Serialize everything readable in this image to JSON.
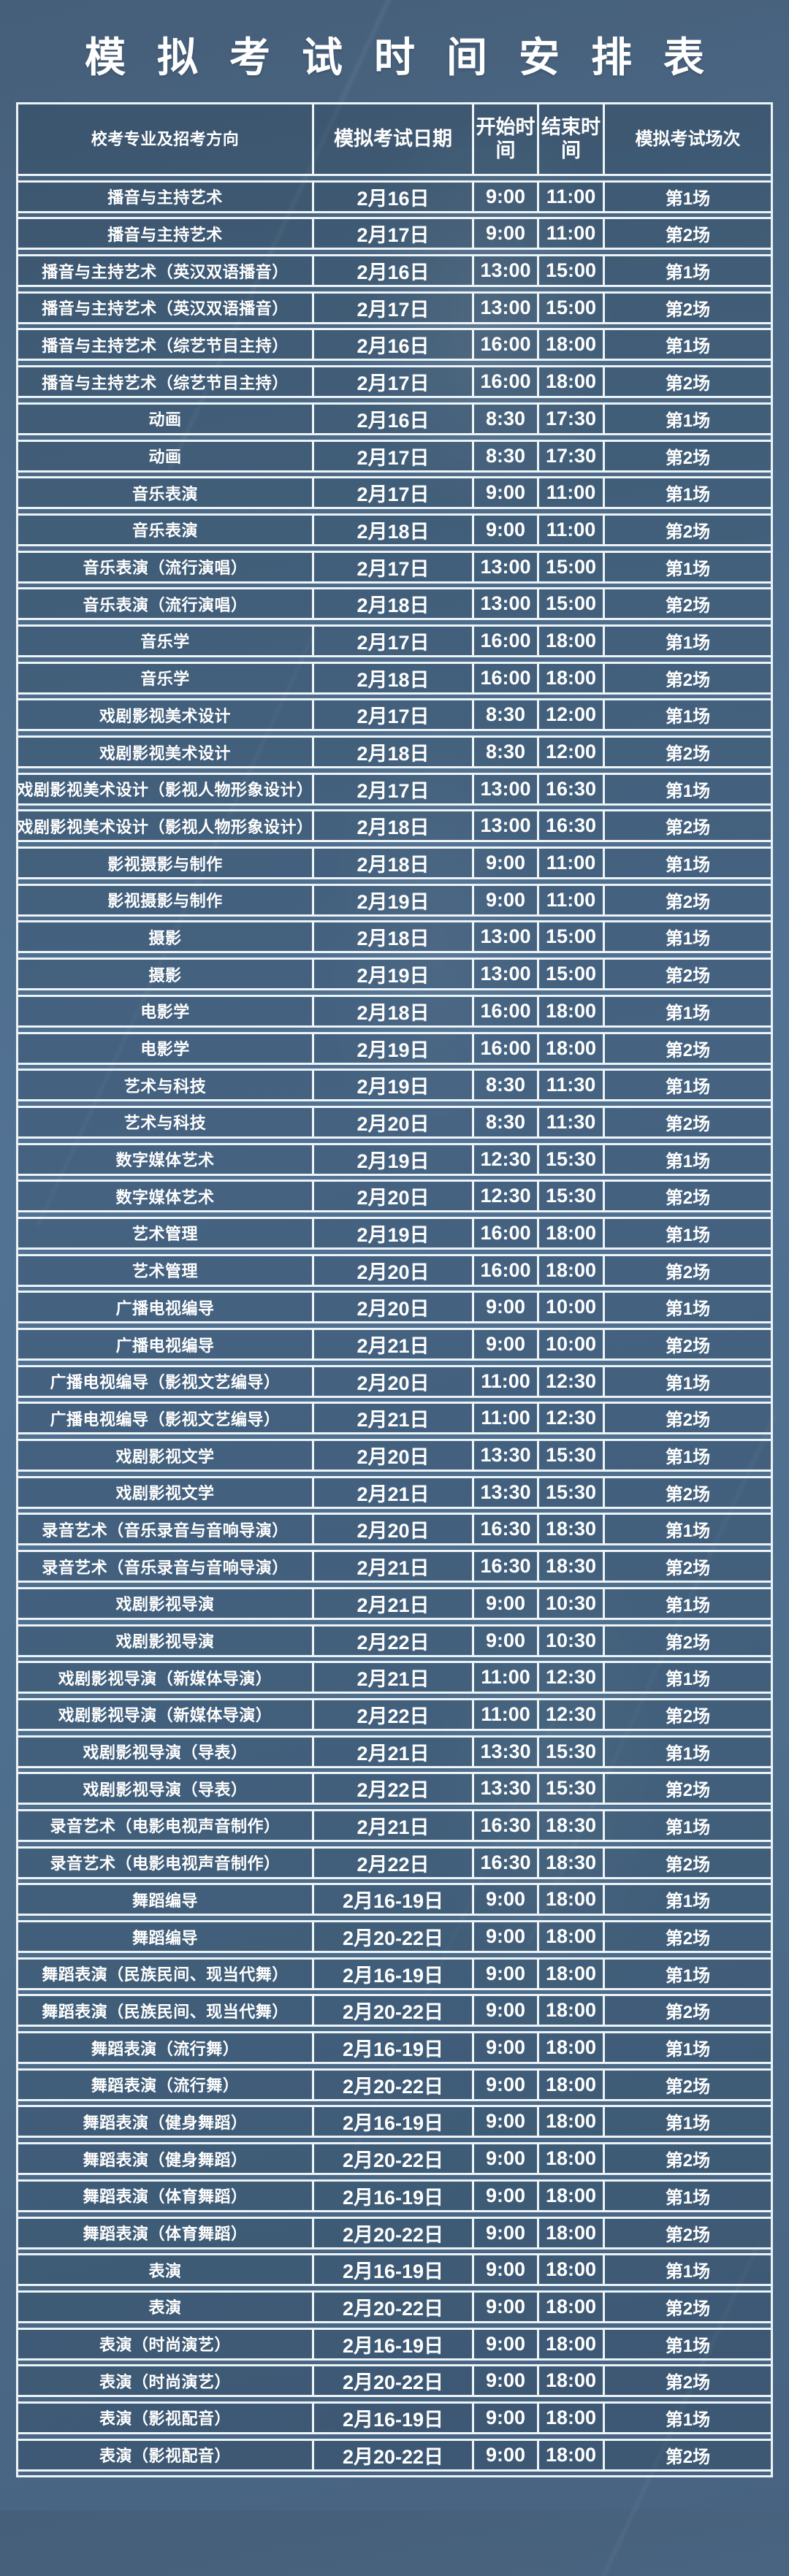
{
  "title": "模拟考试时间安排表",
  "table": {
    "headers": {
      "major": "校考专业及招考方向",
      "date": "模拟考试日期",
      "start": "开始时间",
      "end": "结束时间",
      "session": "模拟考试场次"
    },
    "rows": [
      {
        "major": "播音与主持艺术",
        "date": "2月16日",
        "start": "9:00",
        "end": "11:00",
        "session": "第1场"
      },
      {
        "major": "播音与主持艺术",
        "date": "2月17日",
        "start": "9:00",
        "end": "11:00",
        "session": "第2场"
      },
      {
        "major": "播音与主持艺术（英汉双语播音）",
        "date": "2月16日",
        "start": "13:00",
        "end": "15:00",
        "session": "第1场"
      },
      {
        "major": "播音与主持艺术（英汉双语播音）",
        "date": "2月17日",
        "start": "13:00",
        "end": "15:00",
        "session": "第2场"
      },
      {
        "major": "播音与主持艺术（综艺节目主持）",
        "date": "2月16日",
        "start": "16:00",
        "end": "18:00",
        "session": "第1场"
      },
      {
        "major": "播音与主持艺术（综艺节目主持）",
        "date": "2月17日",
        "start": "16:00",
        "end": "18:00",
        "session": "第2场"
      },
      {
        "major": "动画",
        "date": "2月16日",
        "start": "8:30",
        "end": "17:30",
        "session": "第1场"
      },
      {
        "major": "动画",
        "date": "2月17日",
        "start": "8:30",
        "end": "17:30",
        "session": "第2场"
      },
      {
        "major": "音乐表演",
        "date": "2月17日",
        "start": "9:00",
        "end": "11:00",
        "session": "第1场"
      },
      {
        "major": "音乐表演",
        "date": "2月18日",
        "start": "9:00",
        "end": "11:00",
        "session": "第2场"
      },
      {
        "major": "音乐表演（流行演唱）",
        "date": "2月17日",
        "start": "13:00",
        "end": "15:00",
        "session": "第1场"
      },
      {
        "major": "音乐表演（流行演唱）",
        "date": "2月18日",
        "start": "13:00",
        "end": "15:00",
        "session": "第2场"
      },
      {
        "major": "音乐学",
        "date": "2月17日",
        "start": "16:00",
        "end": "18:00",
        "session": "第1场"
      },
      {
        "major": "音乐学",
        "date": "2月18日",
        "start": "16:00",
        "end": "18:00",
        "session": "第2场"
      },
      {
        "major": "戏剧影视美术设计",
        "date": "2月17日",
        "start": "8:30",
        "end": "12:00",
        "session": "第1场"
      },
      {
        "major": "戏剧影视美术设计",
        "date": "2月18日",
        "start": "8:30",
        "end": "12:00",
        "session": "第2场"
      },
      {
        "major": "戏剧影视美术设计（影视人物形象设计）",
        "date": "2月17日",
        "start": "13:00",
        "end": "16:30",
        "session": "第1场"
      },
      {
        "major": "戏剧影视美术设计（影视人物形象设计）",
        "date": "2月18日",
        "start": "13:00",
        "end": "16:30",
        "session": "第2场"
      },
      {
        "major": "影视摄影与制作",
        "date": "2月18日",
        "start": "9:00",
        "end": "11:00",
        "session": "第1场"
      },
      {
        "major": "影视摄影与制作",
        "date": "2月19日",
        "start": "9:00",
        "end": "11:00",
        "session": "第2场"
      },
      {
        "major": "摄影",
        "date": "2月18日",
        "start": "13:00",
        "end": "15:00",
        "session": "第1场"
      },
      {
        "major": "摄影",
        "date": "2月19日",
        "start": "13:00",
        "end": "15:00",
        "session": "第2场"
      },
      {
        "major": "电影学",
        "date": "2月18日",
        "start": "16:00",
        "end": "18:00",
        "session": "第1场"
      },
      {
        "major": "电影学",
        "date": "2月19日",
        "start": "16:00",
        "end": "18:00",
        "session": "第2场"
      },
      {
        "major": "艺术与科技",
        "date": "2月19日",
        "start": "8:30",
        "end": "11:30",
        "session": "第1场"
      },
      {
        "major": "艺术与科技",
        "date": "2月20日",
        "start": "8:30",
        "end": "11:30",
        "session": "第2场"
      },
      {
        "major": "数字媒体艺术",
        "date": "2月19日",
        "start": "12:30",
        "end": "15:30",
        "session": "第1场"
      },
      {
        "major": "数字媒体艺术",
        "date": "2月20日",
        "start": "12:30",
        "end": "15:30",
        "session": "第2场"
      },
      {
        "major": "艺术管理",
        "date": "2月19日",
        "start": "16:00",
        "end": "18:00",
        "session": "第1场"
      },
      {
        "major": "艺术管理",
        "date": "2月20日",
        "start": "16:00",
        "end": "18:00",
        "session": "第2场"
      },
      {
        "major": "广播电视编导",
        "date": "2月20日",
        "start": "9:00",
        "end": "10:00",
        "session": "第1场"
      },
      {
        "major": "广播电视编导",
        "date": "2月21日",
        "start": "9:00",
        "end": "10:00",
        "session": "第2场"
      },
      {
        "major": "广播电视编导（影视文艺编导）",
        "date": "2月20日",
        "start": "11:00",
        "end": "12:30",
        "session": "第1场"
      },
      {
        "major": "广播电视编导（影视文艺编导）",
        "date": "2月21日",
        "start": "11:00",
        "end": "12:30",
        "session": "第2场"
      },
      {
        "major": "戏剧影视文学",
        "date": "2月20日",
        "start": "13:30",
        "end": "15:30",
        "session": "第1场"
      },
      {
        "major": "戏剧影视文学",
        "date": "2月21日",
        "start": "13:30",
        "end": "15:30",
        "session": "第2场"
      },
      {
        "major": "录音艺术（音乐录音与音响导演）",
        "date": "2月20日",
        "start": "16:30",
        "end": "18:30",
        "session": "第1场"
      },
      {
        "major": "录音艺术（音乐录音与音响导演）",
        "date": "2月21日",
        "start": "16:30",
        "end": "18:30",
        "session": "第2场"
      },
      {
        "major": "戏剧影视导演",
        "date": "2月21日",
        "start": "9:00",
        "end": "10:30",
        "session": "第1场"
      },
      {
        "major": "戏剧影视导演",
        "date": "2月22日",
        "start": "9:00",
        "end": "10:30",
        "session": "第2场"
      },
      {
        "major": "戏剧影视导演（新媒体导演）",
        "date": "2月21日",
        "start": "11:00",
        "end": "12:30",
        "session": "第1场"
      },
      {
        "major": "戏剧影视导演（新媒体导演）",
        "date": "2月22日",
        "start": "11:00",
        "end": "12:30",
        "session": "第2场"
      },
      {
        "major": "戏剧影视导演（导表）",
        "date": "2月21日",
        "start": "13:30",
        "end": "15:30",
        "session": "第1场"
      },
      {
        "major": "戏剧影视导演（导表）",
        "date": "2月22日",
        "start": "13:30",
        "end": "15:30",
        "session": "第2场"
      },
      {
        "major": "录音艺术（电影电视声音制作）",
        "date": "2月21日",
        "start": "16:30",
        "end": "18:30",
        "session": "第1场"
      },
      {
        "major": "录音艺术（电影电视声音制作）",
        "date": "2月22日",
        "start": "16:30",
        "end": "18:30",
        "session": "第2场"
      },
      {
        "major": "舞蹈编导",
        "date": "2月16-19日",
        "start": "9:00",
        "end": "18:00",
        "session": "第1场"
      },
      {
        "major": "舞蹈编导",
        "date": "2月20-22日",
        "start": "9:00",
        "end": "18:00",
        "session": "第2场"
      },
      {
        "major": "舞蹈表演（民族民间、现当代舞）",
        "date": "2月16-19日",
        "start": "9:00",
        "end": "18:00",
        "session": "第1场"
      },
      {
        "major": "舞蹈表演（民族民间、现当代舞）",
        "date": "2月20-22日",
        "start": "9:00",
        "end": "18:00",
        "session": "第2场"
      },
      {
        "major": "舞蹈表演（流行舞）",
        "date": "2月16-19日",
        "start": "9:00",
        "end": "18:00",
        "session": "第1场"
      },
      {
        "major": "舞蹈表演（流行舞）",
        "date": "2月20-22日",
        "start": "9:00",
        "end": "18:00",
        "session": "第2场"
      },
      {
        "major": "舞蹈表演（健身舞蹈）",
        "date": "2月16-19日",
        "start": "9:00",
        "end": "18:00",
        "session": "第1场"
      },
      {
        "major": "舞蹈表演（健身舞蹈）",
        "date": "2月20-22日",
        "start": "9:00",
        "end": "18:00",
        "session": "第2场"
      },
      {
        "major": "舞蹈表演（体育舞蹈）",
        "date": "2月16-19日",
        "start": "9:00",
        "end": "18:00",
        "session": "第1场"
      },
      {
        "major": "舞蹈表演（体育舞蹈）",
        "date": "2月20-22日",
        "start": "9:00",
        "end": "18:00",
        "session": "第2场"
      },
      {
        "major": "表演",
        "date": "2月16-19日",
        "start": "9:00",
        "end": "18:00",
        "session": "第1场"
      },
      {
        "major": "表演",
        "date": "2月20-22日",
        "start": "9:00",
        "end": "18:00",
        "session": "第2场"
      },
      {
        "major": "表演（时尚演艺）",
        "date": "2月16-19日",
        "start": "9:00",
        "end": "18:00",
        "session": "第1场"
      },
      {
        "major": "表演（时尚演艺）",
        "date": "2月20-22日",
        "start": "9:00",
        "end": "18:00",
        "session": "第2场"
      },
      {
        "major": "表演（影视配音）",
        "date": "2月16-19日",
        "start": "9:00",
        "end": "18:00",
        "session": "第1场"
      },
      {
        "major": "表演（影视配音）",
        "date": "2月20-22日",
        "start": "9:00",
        "end": "18:00",
        "session": "第2场"
      }
    ]
  },
  "colors": {
    "background_top": "#455e79",
    "background_mid": "#527294",
    "background_bottom": "#476381",
    "cell_fill": "rgba(25,45,64,0.22)",
    "border": "#edf4f8",
    "text": "#ffffff"
  }
}
